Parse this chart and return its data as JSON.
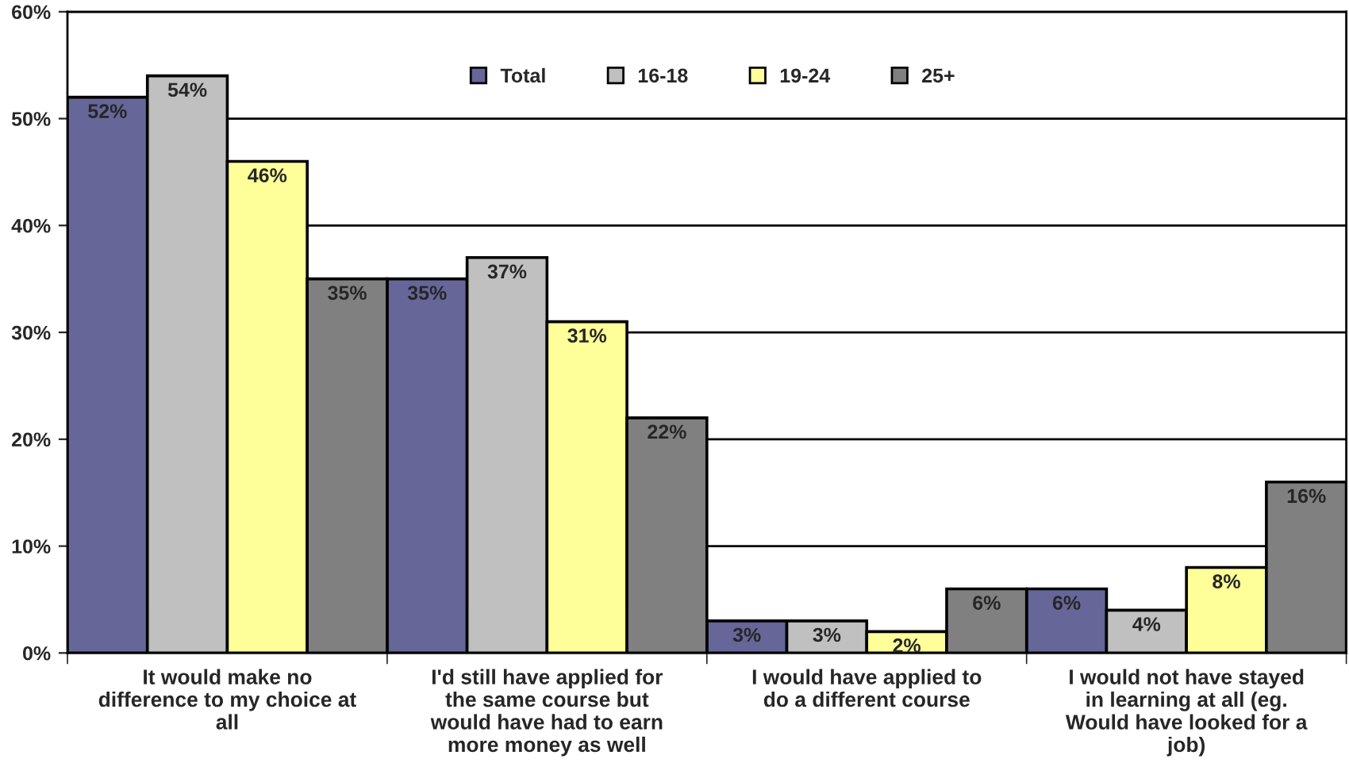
{
  "chart_data": {
    "type": "bar",
    "categories": [
      "It would make no difference to my choice at all",
      "I'd still have applied for the same course but would have had to earn more money as well",
      "I would have applied to do a different course",
      "I would not have stayed in learning at all (eg. Would have looked for a job)"
    ],
    "series": [
      {
        "name": "Total",
        "color": "#666699",
        "values": [
          52,
          35,
          3,
          6
        ],
        "value_labels": [
          "52%",
          "35%",
          "3%",
          "6%"
        ]
      },
      {
        "name": "16-18",
        "color": "#c0c0c0",
        "values": [
          54,
          37,
          3,
          4
        ],
        "value_labels": [
          "54%",
          "37%",
          "3%",
          "4%"
        ]
      },
      {
        "name": "19-24",
        "color": "#ffff99",
        "values": [
          46,
          31,
          2,
          8
        ],
        "value_labels": [
          "46%",
          "31%",
          "2%",
          "8%"
        ]
      },
      {
        "name": "25+",
        "color": "#808080",
        "values": [
          35,
          22,
          6,
          16
        ],
        "value_labels": [
          "35%",
          "22%",
          "6%",
          "16%"
        ]
      }
    ],
    "ylim": [
      0,
      60
    ],
    "yticks": [
      {
        "value": 0,
        "label": "0%"
      },
      {
        "value": 10,
        "label": "10%"
      },
      {
        "value": 20,
        "label": "20%"
      },
      {
        "value": 30,
        "label": "30%"
      },
      {
        "value": 40,
        "label": "40%"
      },
      {
        "value": 50,
        "label": "50%"
      },
      {
        "value": 60,
        "label": "60%"
      }
    ],
    "grid": "y",
    "legend": "top"
  }
}
